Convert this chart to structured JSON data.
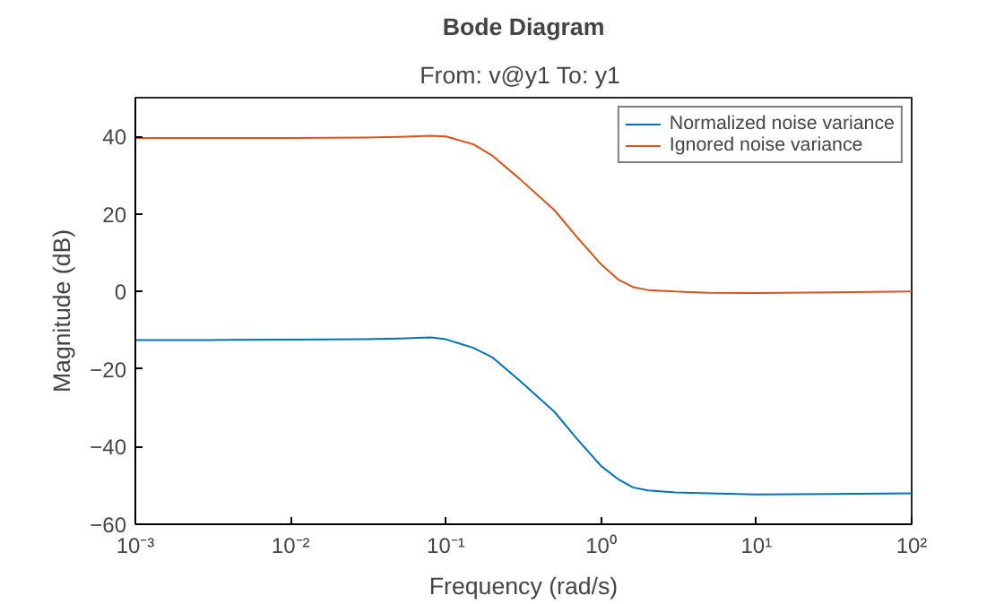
{
  "chart_data": {
    "type": "line",
    "title": "Bode Diagram",
    "subtitle": "From: v@y1  To: y1",
    "xlabel": "Frequency (rad/s)",
    "ylabel": "Magnitude (dB)",
    "log": "x",
    "xlim": [
      0.001,
      100
    ],
    "ylim": [
      -60,
      50
    ],
    "xticks": [
      {
        "value": 0.001,
        "label": "10⁻³"
      },
      {
        "value": 0.01,
        "label": "10⁻²"
      },
      {
        "value": 0.1,
        "label": "10⁻¹"
      },
      {
        "value": 1,
        "label": "10⁰"
      },
      {
        "value": 10,
        "label": "10¹"
      },
      {
        "value": 100,
        "label": "10²"
      }
    ],
    "yticks": [
      -60,
      -40,
      -20,
      0,
      20,
      40
    ],
    "grid": false,
    "legend": "top right",
    "marker": "none",
    "line_style": "solid",
    "x": [
      0.001,
      0.003,
      0.01,
      0.03,
      0.05,
      0.08,
      0.1,
      0.15,
      0.2,
      0.3,
      0.5,
      0.7,
      1,
      1.3,
      1.6,
      2,
      3,
      5,
      10,
      30,
      100
    ],
    "series": [
      {
        "name": "Normalized noise variance",
        "color": "#0072bd",
        "values": [
          -12.5,
          -12.5,
          -12.4,
          -12.3,
          -12.1,
          -11.8,
          -12.3,
          -14.5,
          -17,
          -23,
          -31,
          -38,
          -45,
          -48.5,
          -50.5,
          -51.3,
          -51.8,
          -52,
          -52.3,
          -52.2,
          -52
        ]
      },
      {
        "name": "Ignored noise variance",
        "color": "#d95319",
        "values": [
          39.6,
          39.6,
          39.6,
          39.7,
          39.9,
          40.2,
          40,
          38,
          35,
          29,
          21,
          14,
          7,
          3,
          1.2,
          0.4,
          0,
          -0.3,
          -0.4,
          -0.2,
          0
        ]
      }
    ]
  }
}
